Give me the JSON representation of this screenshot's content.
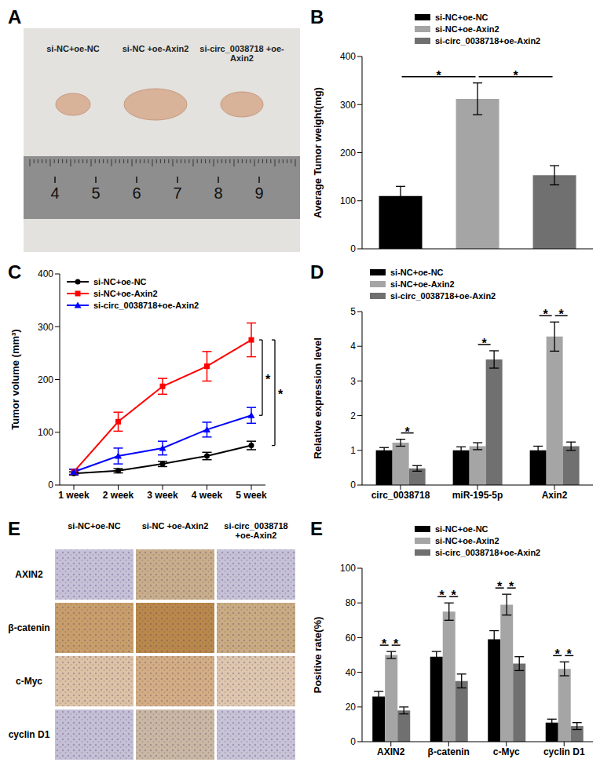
{
  "panel_A": {
    "letter": "A",
    "labels": [
      "si-NC+oe-NC",
      "si-NC +oe-Axin2",
      "si-circ_0038718 +oe-Axin2"
    ],
    "ruler_labels": [
      "4",
      "5",
      "6",
      "7",
      "8",
      "9"
    ]
  },
  "panel_E_images": {
    "letter": "E",
    "columns": [
      "si-NC+oe-NC",
      "si-NC +oe-Axin2",
      "si-circ_0038718 +oe-Axin2"
    ],
    "rows": [
      "AXIN2",
      "β-catenin",
      "c-Myc",
      "cyclin D1"
    ]
  },
  "chart_data": [
    {
      "letter": "B",
      "type": "bar",
      "ylabel": "Average Tumor weight(mg)",
      "categories": [
        "si-NC+oe-NC",
        "si-NC+oe-Axin2",
        "si-circ_0038718+oe-Axin2"
      ],
      "values": [
        110,
        312,
        153
      ],
      "errors": [
        20,
        33,
        20
      ],
      "colors": [
        "#000000",
        "#a5a5a5",
        "#707070"
      ],
      "ylim": [
        0,
        400
      ],
      "yticks": [
        0,
        100,
        200,
        300,
        400
      ],
      "tick_labels": "y",
      "legend": "top",
      "significance": [
        {
          "from": "si-NC+oe-NC",
          "to": "si-NC+oe-Axin2",
          "label": "*"
        },
        {
          "from": "si-NC+oe-Axin2",
          "to": "si-circ_0038718+oe-Axin2",
          "label": "*"
        }
      ]
    },
    {
      "letter": "C",
      "type": "line",
      "ylabel": "Tumor volume (mm³)",
      "categories": [
        "1 week",
        "2 week",
        "3 week",
        "4 week",
        "5 week"
      ],
      "series": [
        {
          "name": "si-NC+oe-NC",
          "color": "#000000",
          "marker": "circle",
          "values": [
            22,
            27,
            40,
            55,
            75
          ],
          "errors": [
            3,
            4,
            5,
            7,
            8
          ]
        },
        {
          "name": "si-NC+oe-Axin2",
          "color": "#ff0000",
          "marker": "square",
          "values": [
            25,
            120,
            187,
            225,
            275
          ],
          "errors": [
            5,
            18,
            15,
            28,
            32
          ]
        },
        {
          "name": "si-circ_0038718+oe-Axin2",
          "color": "#0000ff",
          "marker": "triangle",
          "values": [
            25,
            55,
            70,
            105,
            132
          ],
          "errors": [
            5,
            15,
            13,
            14,
            15
          ]
        }
      ],
      "ylim": [
        0,
        400
      ],
      "yticks": [
        0,
        100,
        200,
        300,
        400
      ],
      "legend": "top-left",
      "significance": [
        {
          "from": "si-NC+oe-Axin2",
          "to": "si-circ_0038718+oe-Axin2",
          "label": "*"
        },
        {
          "from": "si-NC+oe-Axin2",
          "to": "si-NC+oe-NC",
          "label": "*"
        }
      ]
    },
    {
      "letter": "D",
      "type": "bar",
      "ylabel": "Relative expression level",
      "categories": [
        "circ_0038718",
        "miR-195-5p",
        "Axin2"
      ],
      "series": [
        {
          "name": "si-NC+oe-NC",
          "color": "#000000",
          "values": [
            1.0,
            1.0,
            1.0
          ],
          "errors": [
            0.08,
            0.1,
            0.12
          ]
        },
        {
          "name": "si-NC+oe-Axin2",
          "color": "#a5a5a5",
          "values": [
            1.22,
            1.12,
            4.28
          ],
          "errors": [
            0.1,
            0.1,
            0.42
          ]
        },
        {
          "name": "si-circ_0038718+oe-Axin2",
          "color": "#707070",
          "values": [
            0.48,
            3.62,
            1.12
          ],
          "errors": [
            0.08,
            0.25,
            0.12
          ]
        }
      ],
      "ylim": [
        0,
        5
      ],
      "yticks": [
        0,
        1,
        2,
        3,
        4,
        5
      ],
      "legend": "top-left",
      "significance": [
        {
          "category": "circ_0038718",
          "from": "si-NC+oe-Axin2",
          "to": "si-circ_0038718+oe-Axin2",
          "label": "*"
        },
        {
          "category": "miR-195-5p",
          "from": "si-NC+oe-Axin2",
          "to": "si-circ_0038718+oe-Axin2",
          "label": "*"
        },
        {
          "category": "Axin2",
          "from": "si-NC+oe-NC",
          "to": "si-NC+oe-Axin2",
          "label": "*"
        },
        {
          "category": "Axin2",
          "from": "si-NC+oe-Axin2",
          "to": "si-circ_0038718+oe-Axin2",
          "label": "*"
        }
      ]
    },
    {
      "letter": "E",
      "type": "bar",
      "ylabel": "Positive rate(%)",
      "categories": [
        "AXIN2",
        "β-catenin",
        "c-Myc",
        "cyclin D1"
      ],
      "series": [
        {
          "name": "si-NC+oe-NC",
          "color": "#000000",
          "values": [
            26,
            49,
            59,
            11
          ],
          "errors": [
            3,
            3,
            5,
            2
          ]
        },
        {
          "name": "si-NC+oe-Axin2",
          "color": "#a5a5a5",
          "values": [
            50,
            75,
            79,
            42
          ],
          "errors": [
            2,
            5,
            6,
            4
          ]
        },
        {
          "name": "si-circ_0038718+oe-Axin2",
          "color": "#707070",
          "values": [
            18,
            35,
            45,
            9
          ],
          "errors": [
            2,
            4,
            4,
            2
          ]
        }
      ],
      "ylim": [
        0,
        100
      ],
      "yticks": [
        0,
        20,
        40,
        60,
        80,
        100
      ],
      "legend": "top",
      "significance": [
        {
          "category": "AXIN2",
          "from": "si-NC+oe-NC",
          "to": "si-NC+oe-Axin2",
          "label": "*"
        },
        {
          "category": "AXIN2",
          "from": "si-NC+oe-Axin2",
          "to": "si-circ_0038718+oe-Axin2",
          "label": "*"
        },
        {
          "category": "β-catenin",
          "from": "si-NC+oe-NC",
          "to": "si-NC+oe-Axin2",
          "label": "*"
        },
        {
          "category": "β-catenin",
          "from": "si-NC+oe-Axin2",
          "to": "si-circ_0038718+oe-Axin2",
          "label": "*"
        },
        {
          "category": "c-Myc",
          "from": "si-NC+oe-NC",
          "to": "si-NC+oe-Axin2",
          "label": "*"
        },
        {
          "category": "c-Myc",
          "from": "si-NC+oe-Axin2",
          "to": "si-circ_0038718+oe-Axin2",
          "label": "*"
        },
        {
          "category": "cyclin D1",
          "from": "si-NC+oe-NC",
          "to": "si-NC+oe-Axin2",
          "label": "*"
        },
        {
          "category": "cyclin D1",
          "from": "si-NC+oe-Axin2",
          "to": "si-circ_0038718+oe-Axin2",
          "label": "*"
        }
      ]
    }
  ]
}
